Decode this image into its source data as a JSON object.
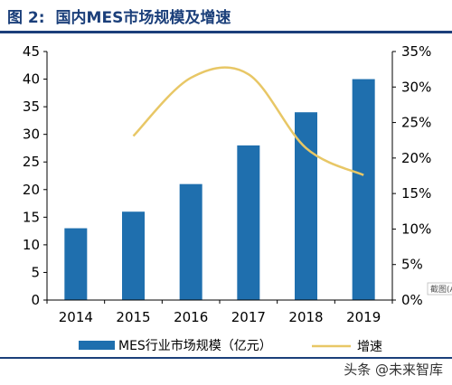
{
  "figure": {
    "label": "图 2:",
    "title": "国内MES市场规模及增速"
  },
  "watermark": "头条 @未来智库",
  "crop_tag": "截图(A",
  "colors": {
    "bar": "#1f6fae",
    "line": "#e8c766",
    "header": "#1b3f7a"
  },
  "chart_data": {
    "type": "bar",
    "title": "国内MES市场规模及增速",
    "categories": [
      "2014",
      "2015",
      "2016",
      "2017",
      "2018",
      "2019"
    ],
    "series": [
      {
        "name": "MES行业市场规模（亿元）",
        "type": "bar",
        "axis": "left",
        "values": [
          13,
          16,
          21,
          28,
          34,
          40
        ]
      },
      {
        "name": "增速",
        "type": "line",
        "axis": "right",
        "values": [
          null,
          23.1,
          31.3,
          31.8,
          21.4,
          17.6
        ]
      }
    ],
    "y_left": {
      "ylim": [
        0,
        45
      ],
      "ticks": [
        0,
        5,
        10,
        15,
        20,
        25,
        30,
        35,
        40,
        45
      ]
    },
    "y_right": {
      "ylim": [
        0,
        35
      ],
      "ticks": [
        "0%",
        "5%",
        "10%",
        "15%",
        "20%",
        "25%",
        "30%",
        "35%"
      ]
    },
    "grid": false,
    "legend_position": "bottom"
  }
}
